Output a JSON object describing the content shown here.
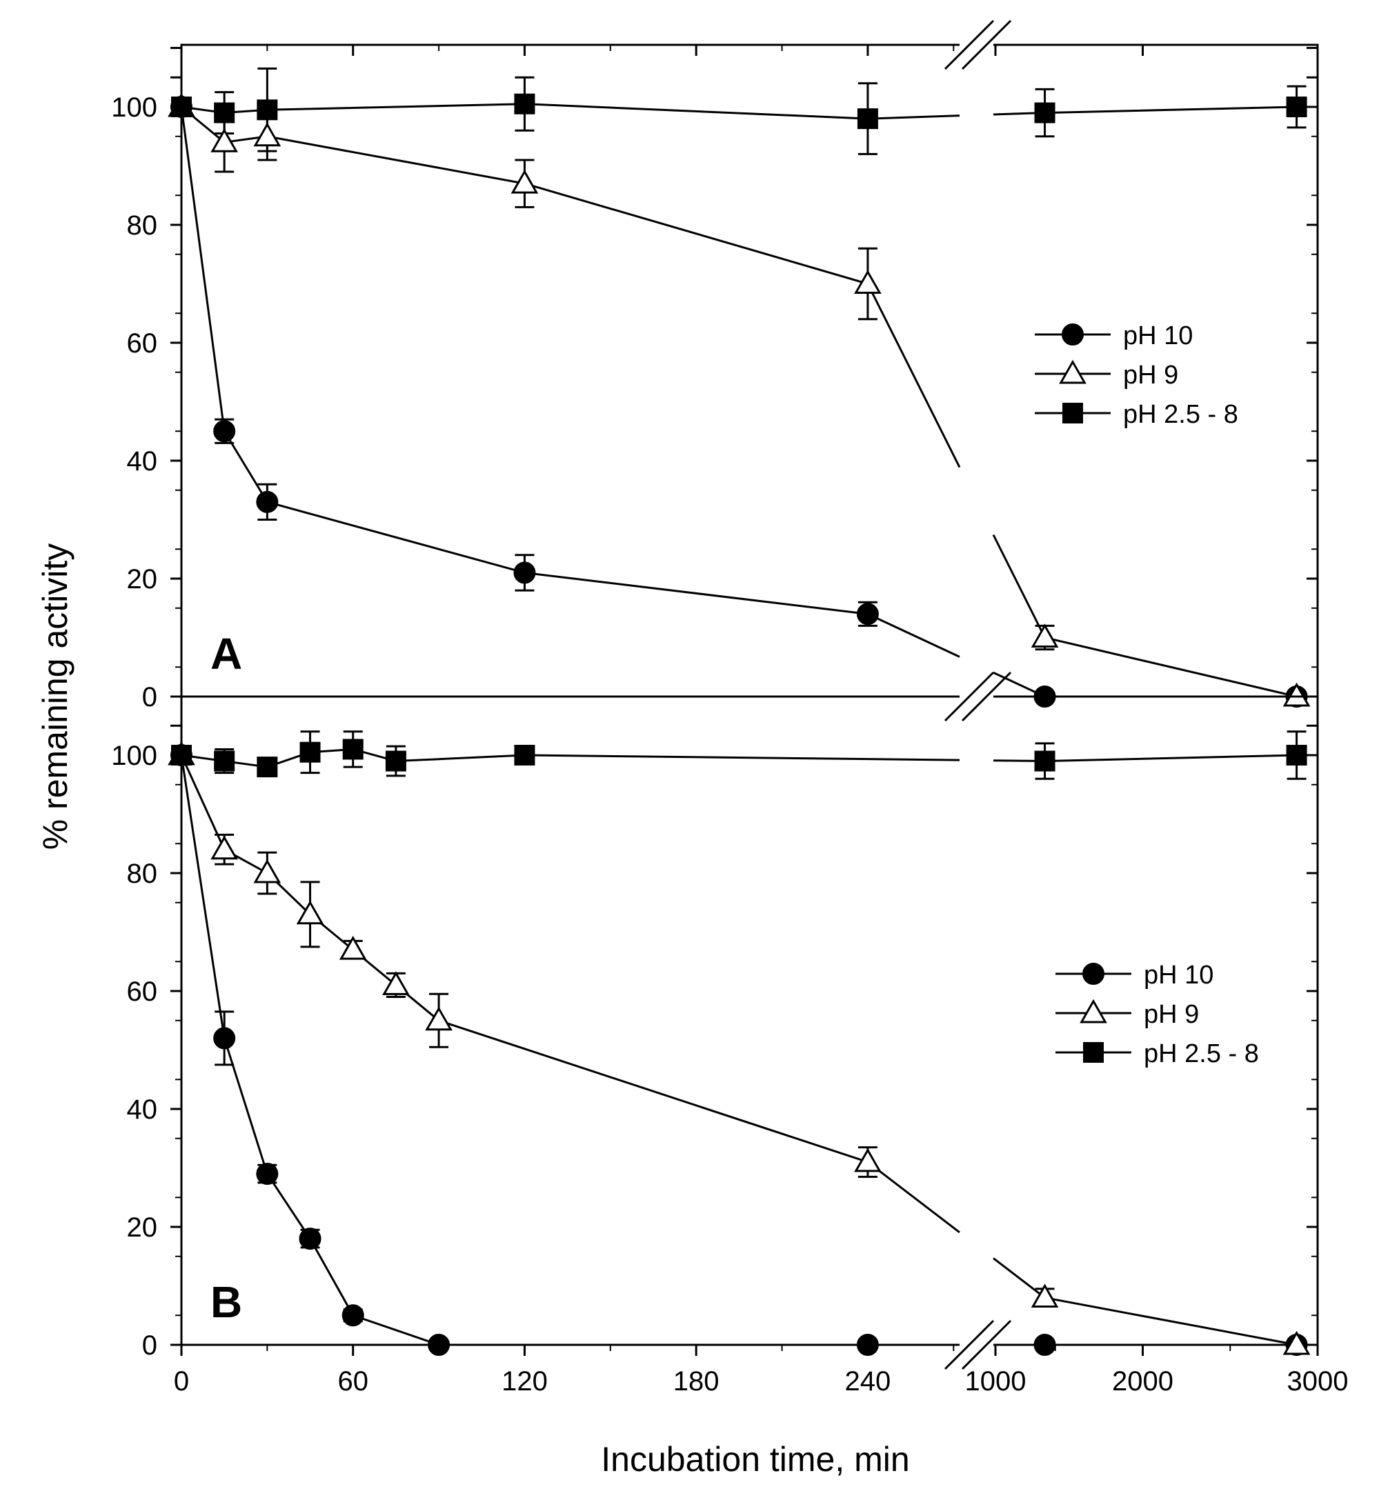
{
  "chart_data": {
    "type": "line",
    "xlabel": "Incubation time, min",
    "ylabel": "% remaining activity",
    "x_segments": [
      {
        "domain": [
          0,
          275
        ],
        "tick_values": [
          0,
          60,
          120,
          180,
          240
        ],
        "tick_labels": [
          "0",
          "60",
          "120",
          "180",
          "240"
        ]
      },
      {
        "domain": [
          1000,
          3000
        ],
        "tick_values": [
          1000,
          2000,
          3000
        ],
        "tick_labels": [
          "1000",
          "2000",
          "3000"
        ]
      }
    ],
    "ylim": [
      0,
      110
    ],
    "y_ticks": [
      0,
      20,
      40,
      60,
      80,
      100
    ],
    "y_tick_labels": [
      "0",
      "20",
      "40",
      "60",
      "80",
      "100"
    ],
    "legend_location": "middle-right",
    "panels": [
      {
        "label": "A",
        "series": [
          {
            "name": "pH 10",
            "marker": "circle-filled",
            "x": [
              0,
              15,
              30,
              120,
              240,
              1440,
              2880
            ],
            "y": [
              100,
              45,
              33,
              21,
              14,
              0,
              0
            ],
            "err": [
              0,
              2,
              3,
              3,
              2,
              0,
              0
            ]
          },
          {
            "name": "pH 9",
            "marker": "triangle-open",
            "x": [
              0,
              15,
              30,
              120,
              240,
              1440,
              2880
            ],
            "y": [
              100,
              94,
              95,
              87,
              70,
              10,
              0
            ],
            "err": [
              0,
              5,
              4,
              4,
              6,
              2,
              0
            ]
          },
          {
            "name": "pH 2.5 - 8",
            "marker": "square-filled",
            "x": [
              0,
              15,
              30,
              120,
              240,
              1440,
              2880
            ],
            "y": [
              100,
              99,
              99.5,
              100.5,
              98,
              99,
              100
            ],
            "err": [
              0,
              3.5,
              7,
              4.5,
              6,
              4,
              3.5
            ]
          }
        ]
      },
      {
        "label": "B",
        "series": [
          {
            "name": "pH 10",
            "marker": "circle-filled",
            "x": [
              0,
              15,
              30,
              45,
              60,
              90,
              240,
              1440,
              2880
            ],
            "y": [
              100,
              52,
              29,
              18,
              5,
              0,
              0,
              0,
              0
            ],
            "err": [
              0,
              4.5,
              1.5,
              1.5,
              1,
              0,
              0,
              0,
              0
            ]
          },
          {
            "name": "pH 9",
            "marker": "triangle-open",
            "x": [
              0,
              15,
              30,
              45,
              60,
              75,
              90,
              240,
              1440,
              2880
            ],
            "y": [
              100,
              84,
              80,
              73,
              67,
              61,
              55,
              31,
              8,
              0
            ],
            "err": [
              0,
              2.5,
              3.5,
              5.5,
              1.5,
              2,
              4.5,
              2.5,
              1.5,
              0
            ]
          },
          {
            "name": "pH 2.5 - 8",
            "marker": "square-filled",
            "x": [
              0,
              15,
              30,
              45,
              60,
              75,
              120,
              1440,
              2880
            ],
            "y": [
              100,
              99,
              98,
              100.5,
              101,
              99,
              100,
              99,
              100
            ],
            "err": [
              0,
              2,
              1,
              3.5,
              3,
              2.5,
              1.5,
              3,
              4
            ]
          }
        ]
      }
    ]
  }
}
